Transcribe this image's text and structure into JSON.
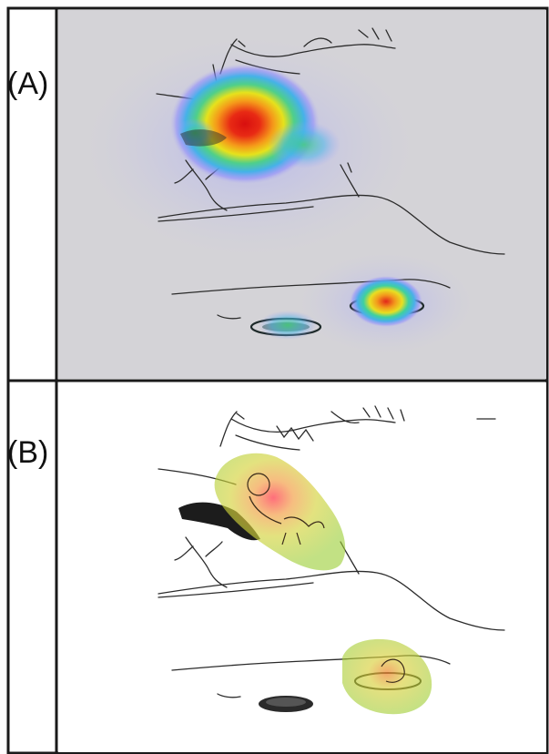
{
  "panels": [
    {
      "label": "(A)"
    },
    {
      "label": "(B)"
    }
  ],
  "colors": {
    "border": "#1a1a1a",
    "panel_a_background": "#d4d3d7",
    "panel_b_background": "#ffffff",
    "heat_hot": "#e81c1c",
    "heat_warm": "#f5d21a",
    "heat_cool": "#26b8c8",
    "heat_cold": "#6a6cff",
    "highlight_green": "#9acd32"
  }
}
